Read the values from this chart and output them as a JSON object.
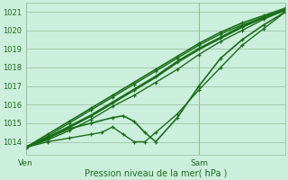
{
  "bg_color": "#cceedd",
  "grid_color": "#99bb99",
  "line_color": "#1a6e1a",
  "marker_color": "#1a6e1a",
  "text_color": "#1a6e1a",
  "ylabel_ticks": [
    1014,
    1015,
    1016,
    1017,
    1018,
    1019,
    1020,
    1021
  ],
  "ylim": [
    1013.3,
    1021.5
  ],
  "xlim": [
    0,
    48
  ],
  "sam_x": 32,
  "xlabel": "Pression niveau de la mer( hPa )",
  "xtick_labels": [
    "Ven",
    "Sam"
  ],
  "xtick_positions": [
    0,
    32
  ],
  "series": [
    {
      "x": [
        0,
        4,
        8,
        12,
        16,
        20,
        24,
        28,
        32,
        36,
        40,
        44,
        48
      ],
      "y": [
        1013.7,
        1014.3,
        1015.0,
        1015.7,
        1016.4,
        1017.1,
        1017.8,
        1018.5,
        1019.2,
        1019.8,
        1020.3,
        1020.7,
        1021.1
      ],
      "lw": 1.0,
      "marker": "+"
    },
    {
      "x": [
        0,
        4,
        8,
        12,
        16,
        20,
        24,
        28,
        32,
        36,
        40,
        44,
        48
      ],
      "y": [
        1013.7,
        1014.4,
        1015.1,
        1015.8,
        1016.5,
        1017.2,
        1017.9,
        1018.6,
        1019.3,
        1019.9,
        1020.4,
        1020.8,
        1021.2
      ],
      "lw": 1.2,
      "marker": "+"
    },
    {
      "x": [
        0,
        4,
        8,
        12,
        16,
        20,
        24,
        28,
        32,
        36,
        40,
        44,
        48
      ],
      "y": [
        1013.7,
        1014.2,
        1014.8,
        1015.4,
        1016.1,
        1016.8,
        1017.5,
        1018.3,
        1019.0,
        1019.6,
        1020.2,
        1020.7,
        1021.1
      ],
      "lw": 2.0,
      "marker": "+"
    },
    {
      "x": [
        0,
        4,
        8,
        12,
        16,
        20,
        24,
        28,
        32,
        36,
        40,
        44,
        48
      ],
      "y": [
        1013.7,
        1014.1,
        1014.6,
        1015.2,
        1015.9,
        1016.5,
        1017.2,
        1017.9,
        1018.7,
        1019.4,
        1020.0,
        1020.6,
        1021.1
      ],
      "lw": 1.0,
      "marker": "+"
    },
    {
      "x": [
        0,
        4,
        8,
        12,
        16,
        18,
        20,
        22,
        24,
        28,
        32,
        36,
        40,
        44,
        48
      ],
      "y": [
        1013.7,
        1014.2,
        1014.7,
        1015.0,
        1015.3,
        1015.4,
        1015.1,
        1014.5,
        1014.0,
        1015.3,
        1017.0,
        1018.5,
        1019.5,
        1020.3,
        1021.0
      ],
      "lw": 1.2,
      "marker": "+"
    },
    {
      "x": [
        0,
        4,
        8,
        12,
        14,
        16,
        18,
        20,
        22,
        24,
        28,
        32,
        36,
        40,
        44,
        48
      ],
      "y": [
        1013.7,
        1014.0,
        1014.2,
        1014.4,
        1014.5,
        1014.8,
        1014.4,
        1014.0,
        1014.0,
        1014.5,
        1015.5,
        1016.8,
        1018.0,
        1019.2,
        1020.1,
        1021.0
      ],
      "lw": 1.0,
      "marker": "+"
    }
  ]
}
